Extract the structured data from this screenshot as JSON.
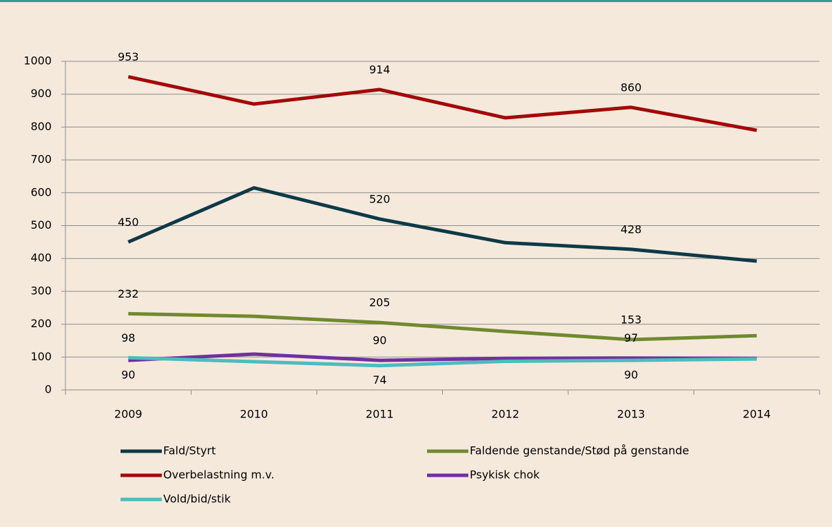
{
  "chart_data": {
    "type": "line",
    "categories": [
      "2009",
      "2010",
      "2011",
      "2012",
      "2013",
      "2014"
    ],
    "series": [
      {
        "name": "Fald/Styrt",
        "color": "#0e3a47",
        "values": [
          450,
          615,
          520,
          448,
          428,
          392
        ]
      },
      {
        "name": "Faldende genstande/Stød på genstande",
        "color": "#6f8a2f",
        "values": [
          232,
          224,
          205,
          178,
          153,
          165
        ]
      },
      {
        "name": "Overbelastning m.v.",
        "color": "#a30808",
        "values": [
          953,
          870,
          914,
          828,
          860,
          790
        ]
      },
      {
        "name": "Psykisk chok",
        "color": "#7030a0",
        "values": [
          90,
          109,
          90,
          96,
          97,
          96
        ]
      },
      {
        "name": "Vold/bid/stik",
        "color": "#4bbdbd",
        "values": [
          98,
          86,
          74,
          87,
          90,
          94
        ]
      }
    ],
    "label_indices": [
      0,
      2,
      4
    ],
    "ylim": [
      0,
      1000
    ],
    "yticks": [
      0,
      100,
      200,
      300,
      400,
      500,
      600,
      700,
      800,
      900,
      1000
    ],
    "grid": true,
    "legend": "bottom"
  }
}
